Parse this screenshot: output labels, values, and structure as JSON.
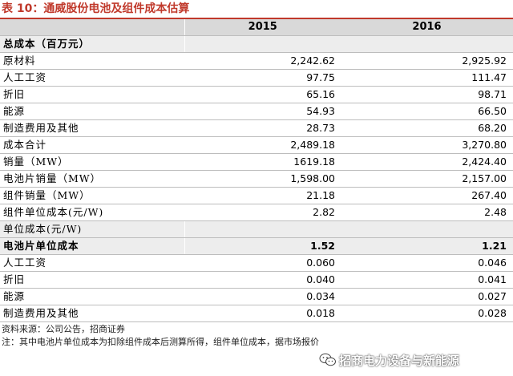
{
  "title": "表 10：通威股份电池及组件成本估算",
  "header": {
    "col1": "",
    "col2": "2015",
    "col3": "2016"
  },
  "sections": [
    {
      "kind": "sec",
      "label": "总成本（百万元）",
      "v2015": "",
      "v2016": ""
    },
    {
      "kind": "row",
      "label": "原材料",
      "v2015": "2,242.62",
      "v2016": "2,925.92"
    },
    {
      "kind": "row",
      "label": "人工工资",
      "v2015": "97.75",
      "v2016": "111.47"
    },
    {
      "kind": "row",
      "label": "折旧",
      "v2015": "65.16",
      "v2016": "98.71"
    },
    {
      "kind": "row",
      "label": "能源",
      "v2015": "54.93",
      "v2016": "66.50"
    },
    {
      "kind": "row",
      "label": "制造费用及其他",
      "v2015": "28.73",
      "v2016": "68.20"
    },
    {
      "kind": "row",
      "label": "成本合计",
      "v2015": "2,489.18",
      "v2016": "3,270.80"
    },
    {
      "kind": "row",
      "label": "销量（MW）",
      "v2015": "1619.18",
      "v2016": "2,424.40"
    },
    {
      "kind": "row",
      "label": "电池片销量（MW）",
      "v2015": "1,598.00",
      "v2016": "2,157.00"
    },
    {
      "kind": "row",
      "label": "组件销量（MW）",
      "v2015": "21.18",
      "v2016": "267.40"
    },
    {
      "kind": "row",
      "label": "组件单位成本(元/W)",
      "v2015": "2.82",
      "v2016": "2.48"
    },
    {
      "kind": "shade",
      "label": "单位成本(元/W)",
      "v2015": "",
      "v2016": ""
    },
    {
      "kind": "bold",
      "label": "电池片单位成本",
      "v2015": "1.52",
      "v2016": "1.21"
    },
    {
      "kind": "row",
      "label": "人工工资",
      "v2015": "0.060",
      "v2016": "0.046"
    },
    {
      "kind": "row",
      "label": "折旧",
      "v2015": "0.040",
      "v2016": "0.041"
    },
    {
      "kind": "row",
      "label": "能源",
      "v2015": "0.034",
      "v2016": "0.027"
    },
    {
      "kind": "row",
      "label": "制造费用及其他",
      "v2015": "0.018",
      "v2016": "0.028"
    }
  ],
  "notes": {
    "source": "资料来源：公司公告，招商证券",
    "note": "注：其中电池片单位成本为扣除组件成本后测算所得，组件单位成本，据市场报价"
  },
  "watermark": {
    "text": "招商电力设备与新能源",
    "icon": "wechat-icon"
  },
  "colors": {
    "title": "#c0392b",
    "header_bg": "#d9d9d9",
    "shade_bg": "#ededed"
  }
}
